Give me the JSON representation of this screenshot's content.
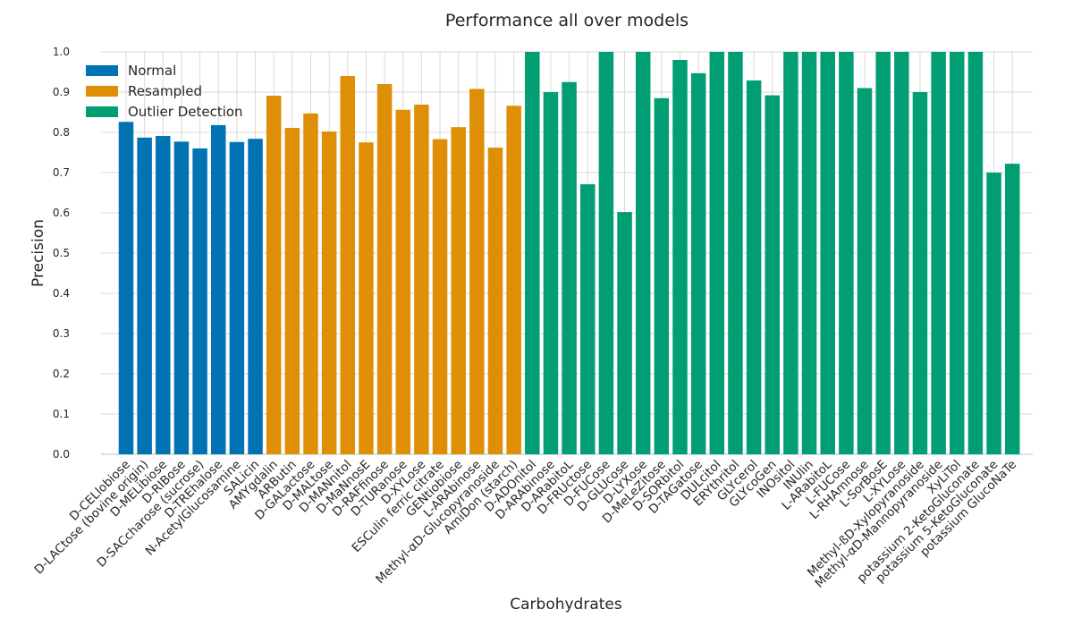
{
  "chart_data": {
    "type": "bar",
    "title": "Performance all over models",
    "xlabel": "Carbohydrates",
    "ylabel": "Precision",
    "ylim": [
      0,
      1.0
    ],
    "yticks": [
      "0.0",
      "0.1",
      "0.2",
      "0.3",
      "0.4",
      "0.5",
      "0.6",
      "0.7",
      "0.8",
      "0.9",
      "1.0"
    ],
    "grid": true,
    "legend_position": "top-left",
    "series": [
      {
        "name": "Normal",
        "color": "#0173b2",
        "categories": [
          "D-CELlobiose",
          "D-LACtose (bovine origin)",
          "D-MELibiose",
          "D-RIBose",
          "D-SACcharose (sucrose)",
          "D-TREhalose",
          "N-AcetylGlucosamine",
          "SALicin"
        ],
        "values": [
          0.826,
          0.787,
          0.791,
          0.777,
          0.76,
          0.818,
          0.776,
          0.784
        ]
      },
      {
        "name": "Resampled",
        "color": "#de8f05",
        "categories": [
          "AMYgdalin",
          "ARButin",
          "D-GALactose",
          "D-MALtose",
          "D-MANnitol",
          "D-MaNnosE",
          "D-RAFfinose",
          "D-TURanose",
          "D-XYLose",
          "ESCulin ferric citrate",
          "GENtiobiose",
          "L-ARAbinose",
          "Methyl-αD-Glucopyranoside",
          "AmiDon (starch)"
        ],
        "values": [
          0.891,
          0.811,
          0.847,
          0.802,
          0.94,
          0.775,
          0.92,
          0.856,
          0.869,
          0.783,
          0.813,
          0.908,
          0.762,
          0.866
        ]
      },
      {
        "name": "Outlier Detection",
        "color": "#029e73",
        "categories": [
          "D-ADOnitol",
          "D-ARAbinose",
          "D-ARabitoL",
          "D-FRUctose",
          "D-FUCose",
          "D-GLUcose",
          "D-LYXose",
          "D-MeLeZitose",
          "D-SORbitol",
          "D-TAGatose",
          "DULcitol",
          "ERYthritol",
          "GLYcerol",
          "GLYcoGen",
          "INOsitol",
          "INUlin",
          "L-ARabitoL",
          "L-FUCose",
          "L-RHAmnose",
          "L-SorBosE",
          "L-XYLose",
          "Methyl-ßD-Xylopyranoside",
          "Methyl-αD-Mannopyranoside",
          "XyLiTol",
          "potassium 2-KetoGluconate",
          "potassium 5-KetoGluconate",
          "potassium GlucoNaTe"
        ],
        "values": [
          1.0,
          0.9,
          0.925,
          0.671,
          1.0,
          0.602,
          1.0,
          0.885,
          0.98,
          0.947,
          1.0,
          1.0,
          0.929,
          0.892,
          1.0,
          1.0,
          1.0,
          1.0,
          0.91,
          1.0,
          1.0,
          0.9,
          1.0,
          1.0,
          1.0,
          0.7,
          0.722
        ]
      }
    ]
  }
}
